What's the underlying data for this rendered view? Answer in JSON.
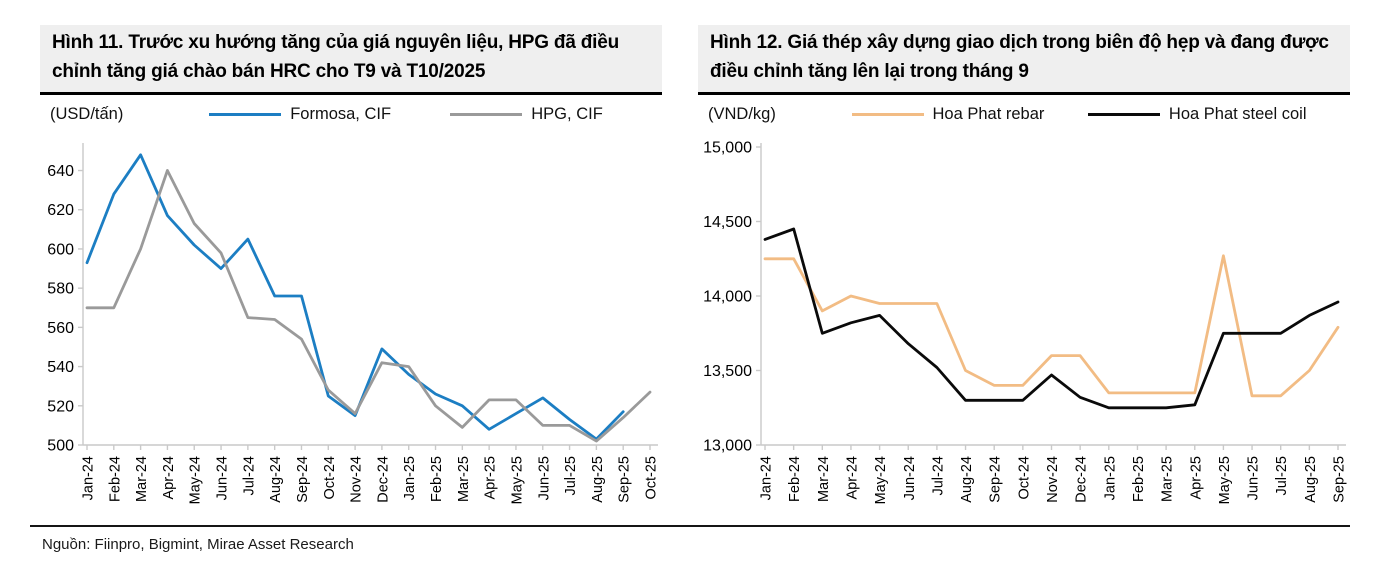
{
  "page": {
    "source": "Nguồn: Fiinpro, Bigmint, Mirae Asset Research"
  },
  "chart_data": [
    {
      "type": "line",
      "title": "Hình 11. Trước xu hướng tăng của giá nguyên liệu, HPG đã điều chỉnh tăng giá chào bán HRC cho T9 và T10/2025",
      "ylabel": "(USD/tấn)",
      "grid": false,
      "legend_position": "top",
      "ylim": [
        500,
        652
      ],
      "yticks": [
        500,
        520,
        540,
        560,
        580,
        600,
        620,
        640
      ],
      "ytick_labels": [
        "500",
        "520",
        "540",
        "560",
        "580",
        "600",
        "620",
        "640"
      ],
      "categories": [
        "Jan-24",
        "Feb-24",
        "Mar-24",
        "Apr-24",
        "May-24",
        "Jun-24",
        "Jul-24",
        "Aug-24",
        "Sep-24",
        "Oct-24",
        "Nov-24",
        "Dec-24",
        "Jan-25",
        "Feb-25",
        "Mar-25",
        "Apr-25",
        "May-25",
        "Jun-25",
        "Jul-25",
        "Aug-25",
        "Sep-25",
        "Oct-25"
      ],
      "series": [
        {
          "name": "Formosa, CIF",
          "color": "#1C7EC3",
          "values": [
            593,
            628,
            648,
            617,
            602,
            590,
            605,
            576,
            576,
            525,
            515,
            549,
            536,
            526,
            520,
            508,
            516,
            524,
            513,
            503,
            517,
            null
          ]
        },
        {
          "name": "HPG, CIF",
          "color": "#9A9A9A",
          "values": [
            570,
            570,
            600,
            640,
            613,
            598,
            565,
            564,
            554,
            528,
            516,
            542,
            540,
            520,
            509,
            523,
            523,
            510,
            510,
            502,
            514,
            527
          ]
        }
      ]
    },
    {
      "type": "line",
      "title": "Hình 12. Giá thép xây dựng giao dịch trong biên độ hẹp và đang được điều chỉnh tăng lên lại trong tháng 9",
      "ylabel": "(VND/kg)",
      "grid": false,
      "legend_position": "top",
      "ylim": [
        13000,
        15000
      ],
      "yticks": [
        13000,
        13500,
        14000,
        14500,
        15000
      ],
      "ytick_labels": [
        "13,000",
        "13,500",
        "14,000",
        "14,500",
        "15,000"
      ],
      "categories": [
        "Jan-24",
        "Feb-24",
        "Mar-24",
        "Apr-24",
        "May-24",
        "Jun-24",
        "Jul-24",
        "Aug-24",
        "Sep-24",
        "Oct-24",
        "Nov-24",
        "Dec-24",
        "Jan-25",
        "Feb-25",
        "Mar-25",
        "Apr-25",
        "May-25",
        "Jun-25",
        "Jul-25",
        "Aug-25",
        "Sep-25"
      ],
      "series": [
        {
          "name": "Hoa Phat rebar",
          "color": "#F2BC84",
          "values": [
            14250,
            14250,
            13900,
            14000,
            13950,
            13950,
            13950,
            13500,
            13400,
            13400,
            13600,
            13600,
            13350,
            13350,
            13350,
            13350,
            14270,
            13330,
            13330,
            13500,
            13790
          ]
        },
        {
          "name": "Hoa Phat steel coil",
          "color": "#0A0A0A",
          "values": [
            14380,
            14450,
            13750,
            13820,
            13870,
            13680,
            13520,
            13300,
            13300,
            13300,
            13470,
            13320,
            13250,
            13250,
            13250,
            13270,
            13750,
            13750,
            13750,
            13870,
            13960
          ]
        }
      ]
    }
  ]
}
